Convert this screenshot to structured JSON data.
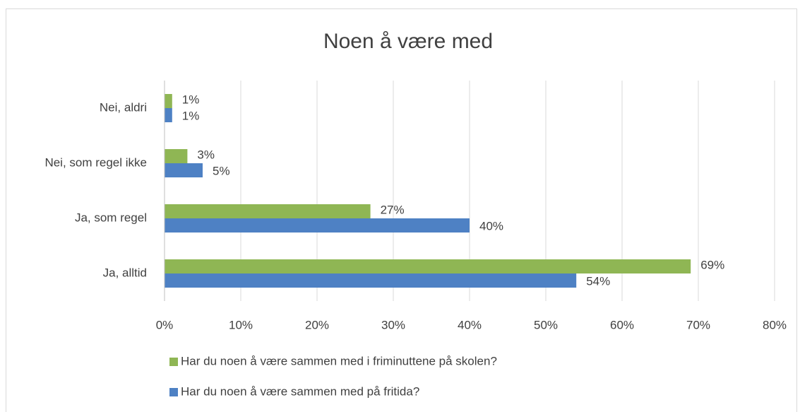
{
  "chart_data": {
    "type": "hbar",
    "title": "Noen å være med",
    "categories": [
      "Nei, aldri",
      "Nei, som regel ikke",
      "Ja, som regel",
      "Ja, alltid"
    ],
    "series": [
      {
        "name": "Har du noen å være sammen med i friminuttene på skolen?",
        "color": "#8fb654",
        "values": [
          1,
          3,
          27,
          69
        ],
        "value_labels": [
          "1%",
          "3%",
          "27%",
          "69%"
        ]
      },
      {
        "name": "Har du noen å være sammen med på fritida?",
        "color": "#4e81c4",
        "values": [
          1,
          5,
          40,
          54
        ],
        "value_labels": [
          "1%",
          "5%",
          "40%",
          "54%"
        ]
      }
    ],
    "xlim": [
      0,
      80
    ],
    "xticks": [
      {
        "value": 0,
        "label": "0%"
      },
      {
        "value": 10,
        "label": "10%"
      },
      {
        "value": 20,
        "label": "20%"
      },
      {
        "value": 30,
        "label": "30%"
      },
      {
        "value": 40,
        "label": "40%"
      },
      {
        "value": 50,
        "label": "50%"
      },
      {
        "value": 60,
        "label": "60%"
      },
      {
        "value": 70,
        "label": "70%"
      },
      {
        "value": 80,
        "label": "80%"
      }
    ],
    "grid": true,
    "legend": "bottom"
  }
}
